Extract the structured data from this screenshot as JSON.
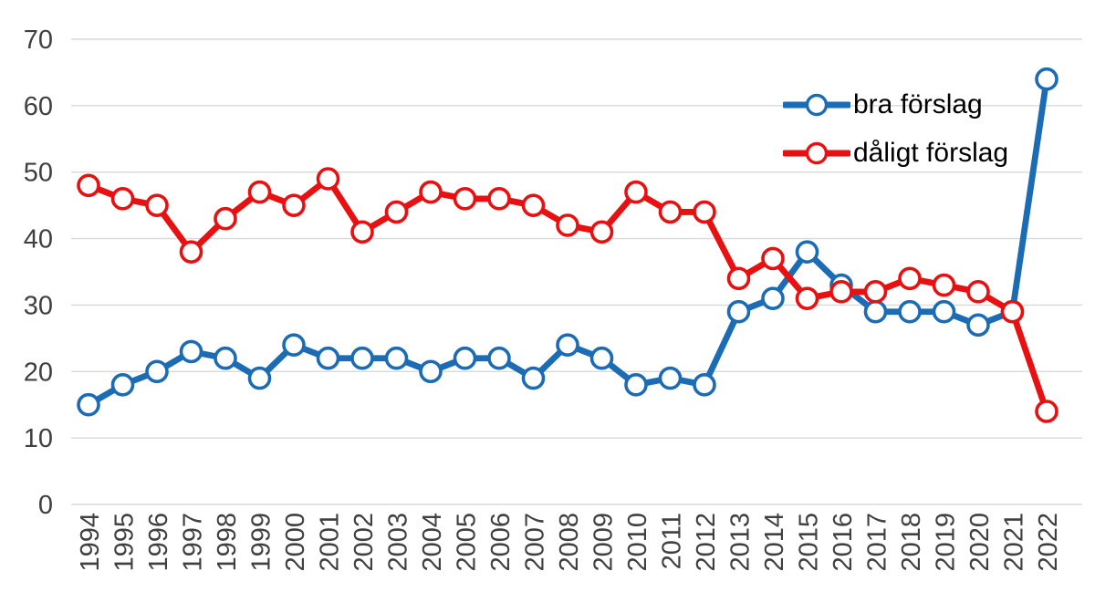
{
  "chart_data": {
    "type": "line",
    "title": "",
    "xlabel": "",
    "ylabel": "",
    "x": [
      1994,
      1995,
      1996,
      1997,
      1998,
      1999,
      2000,
      2001,
      2002,
      2003,
      2004,
      2005,
      2006,
      2007,
      2008,
      2009,
      2010,
      2011,
      2012,
      2013,
      2014,
      2015,
      2016,
      2017,
      2018,
      2019,
      2020,
      2021,
      2022
    ],
    "series": [
      {
        "name": "bra förslag",
        "color": "#1b6cb5",
        "values": [
          15,
          18,
          20,
          23,
          22,
          19,
          24,
          22,
          22,
          22,
          20,
          22,
          22,
          19,
          24,
          22,
          18,
          19,
          18,
          29,
          31,
          38,
          33,
          29,
          29,
          29,
          27,
          29,
          64
        ]
      },
      {
        "name": "dåligt förslag",
        "color": "#e81010",
        "values": [
          48,
          46,
          45,
          38,
          43,
          47,
          45,
          49,
          41,
          44,
          47,
          46,
          46,
          45,
          42,
          41,
          47,
          44,
          44,
          34,
          37,
          31,
          32,
          32,
          34,
          33,
          32,
          29,
          14
        ]
      }
    ],
    "ylim": [
      0,
      70
    ],
    "yticks": [
      0,
      10,
      20,
      30,
      40,
      50,
      60,
      70
    ],
    "grid": true,
    "grid_color": "#d9d9d9",
    "axis_label_color": "#404040",
    "legend_position": "top-right",
    "marker": "open-circle",
    "marker_fill": "#ffffff"
  }
}
